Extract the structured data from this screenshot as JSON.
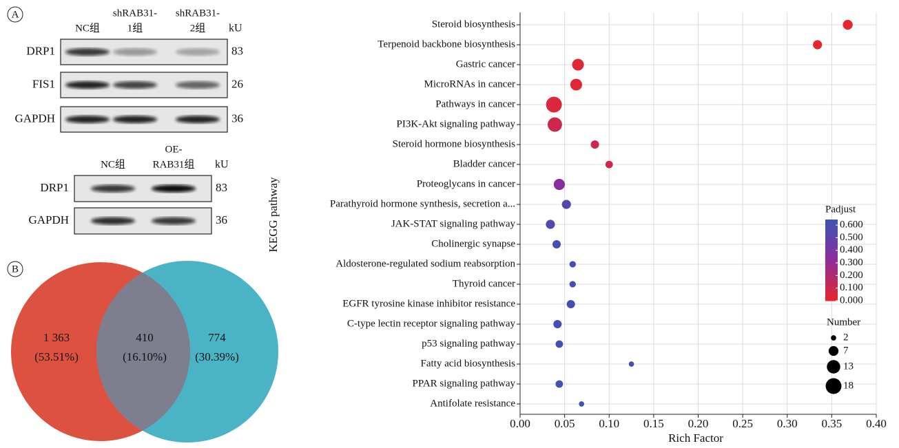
{
  "panel_a": {
    "label": "A",
    "blot_top": {
      "lanes": [
        [
          "NC组"
        ],
        [
          "shRAB31-",
          "1组"
        ],
        [
          "shRAB31-",
          "2组"
        ]
      ],
      "unit": "kU",
      "rows": [
        {
          "protein": "DRP1",
          "kda": 83
        },
        {
          "protein": "FIS1",
          "kda": 26
        },
        {
          "protein": "GAPDH",
          "kda": 36
        }
      ]
    },
    "blot_bottom": {
      "lanes": [
        [
          "NC组"
        ],
        [
          "OE-",
          "RAB31组"
        ]
      ],
      "unit": "kU",
      "rows": [
        {
          "protein": "DRP1",
          "kda": 83
        },
        {
          "protein": "GAPDH",
          "kda": 36
        }
      ]
    }
  },
  "panel_b": {
    "label": "B",
    "venn": [
      {
        "count": "1 363",
        "percent": "(53.51%)",
        "color": "#dd5141"
      },
      {
        "count": "410",
        "percent": "(16.10%)",
        "color": "#7d7e8e"
      },
      {
        "count": "774",
        "percent": "(30.39%)",
        "color": "#4bb3c6"
      }
    ]
  },
  "chart_data": {
    "type": "bubble",
    "x_label": "Rich Factor",
    "y_label": "KEGG pathway",
    "categories": [
      "Steroid biosynthesis",
      "Terpenoid backbone biosynthesis",
      "Gastric cancer",
      "MicroRNAs in cancer",
      "Pathways in cancer",
      "PI3K-Akt signaling pathway",
      "Steroid hormone biosynthesis",
      "Bladder cancer",
      "Proteoglycans in cancer",
      "Parathyroid hormone synthesis, secretion a...",
      "JAK-STAT signaling pathway",
      "Cholinergic synapse",
      "Aldosterone-regulated sodium reabsorption",
      "Thyroid cancer",
      "EGFR tyrosine kinase inhibitor resistance",
      "C-type lectin receptor signaling pathway",
      "p53 signaling pathway",
      "Fatty acid biosynthesis",
      "PPAR signaling pathway",
      "Antifolate resistance"
    ],
    "x": [
      0.368,
      0.334,
      0.065,
      0.063,
      0.038,
      0.039,
      0.084,
      0.1,
      0.044,
      0.052,
      0.034,
      0.041,
      0.059,
      0.059,
      0.057,
      0.042,
      0.044,
      0.125,
      0.044,
      0.069
    ],
    "padjust": [
      0.0,
      0.01,
      0.03,
      0.03,
      0.05,
      0.1,
      0.1,
      0.1,
      0.35,
      0.55,
      0.55,
      0.6,
      0.6,
      0.6,
      0.6,
      0.6,
      0.6,
      0.6,
      0.6,
      0.62
    ],
    "number": [
      7,
      6,
      10,
      10,
      18,
      15,
      5,
      4,
      9,
      6,
      6,
      5,
      3,
      3,
      5,
      5,
      4,
      2,
      4,
      2
    ],
    "xlim": [
      0,
      0.4
    ],
    "xticks": [
      {
        "value": 0,
        "label": "0.00"
      },
      {
        "value": 0.05,
        "label": "0.05"
      },
      {
        "value": 0.1,
        "label": "0.10"
      },
      {
        "value": 0.15,
        "label": "0.15"
      },
      {
        "value": 0.2,
        "label": "0.20"
      },
      {
        "value": 0.25,
        "label": "0.25"
      },
      {
        "value": 0.3,
        "label": "0.30"
      },
      {
        "value": 0.35,
        "label": "0.35"
      },
      {
        "value": 0.4,
        "label": "0.40"
      }
    ],
    "grid": true,
    "color_title": "Padjust",
    "clim": [
      0,
      0.644
    ],
    "colors": [
      "#e8262a",
      "#8e2c9b",
      "#3a55b4"
    ],
    "cticks": [
      {
        "value": 0,
        "label": "0.000"
      },
      {
        "value": 0.1,
        "label": "0.100"
      },
      {
        "value": 0.2,
        "label": "0.200"
      },
      {
        "value": 0.3,
        "label": "0.300"
      },
      {
        "value": 0.4,
        "label": "0.400"
      },
      {
        "value": 0.5,
        "label": "0.500"
      },
      {
        "value": 0.6,
        "label": "0.600"
      }
    ],
    "size_title": "Number",
    "size_legend": [
      2,
      7,
      13,
      18
    ]
  }
}
